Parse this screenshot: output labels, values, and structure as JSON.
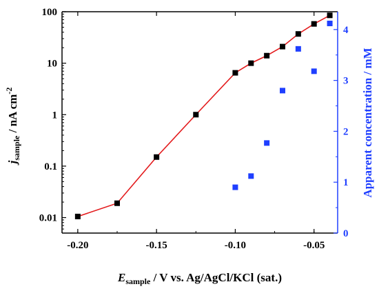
{
  "colors": {
    "current_series": "#e31a1c",
    "current_marker": "#000000",
    "concentration_series": "#1f3fff",
    "axis": "#000000",
    "right_axis": "#1f3fff"
  },
  "chart_data": {
    "type": "scatter",
    "x_axis": {
      "label_main": "E",
      "label_sub": "sample",
      "label_rest": " / V vs. Ag/AgCl/KCl (sat.)",
      "range": [
        -0.21,
        -0.035
      ],
      "ticks": [
        -0.2,
        -0.15,
        -0.1,
        -0.05
      ],
      "tick_labels": [
        "-0.20",
        "-0.15",
        "-0.10",
        "-0.05"
      ]
    },
    "y_left": {
      "label_main": "j",
      "label_sub": "sample",
      "label_rest": " / nA cm",
      "label_sup": "-2",
      "scale": "log",
      "range": [
        0.005,
        100
      ],
      "ticks": [
        0.01,
        0.1,
        1,
        10,
        100
      ],
      "tick_labels": [
        "0.01",
        "0.1",
        "1",
        "10",
        "100"
      ]
    },
    "y_right": {
      "label": "Apparent concentration / mM",
      "scale": "linear",
      "range": [
        0,
        4.35
      ],
      "ticks": [
        0,
        1,
        2,
        3,
        4
      ],
      "tick_labels": [
        "0",
        "1",
        "2",
        "3",
        "4"
      ]
    },
    "series": [
      {
        "axis": "left",
        "style": "line+square",
        "points": [
          [
            -0.2,
            0.0105
          ],
          [
            -0.175,
            0.019
          ],
          [
            -0.15,
            0.15
          ],
          [
            -0.125,
            1.0
          ],
          [
            -0.1,
            6.5
          ],
          [
            -0.09,
            10.0
          ],
          [
            -0.08,
            14.0
          ],
          [
            -0.07,
            21.0
          ],
          [
            -0.06,
            37.0
          ],
          [
            -0.05,
            58.0
          ],
          [
            -0.04,
            85.0
          ]
        ]
      },
      {
        "axis": "right",
        "style": "square",
        "points": [
          [
            -0.1,
            0.9
          ],
          [
            -0.09,
            1.12
          ],
          [
            -0.08,
            1.77
          ],
          [
            -0.07,
            2.8
          ],
          [
            -0.06,
            3.62
          ],
          [
            -0.05,
            3.18
          ],
          [
            -0.04,
            4.12
          ]
        ]
      }
    ],
    "grid": false
  }
}
